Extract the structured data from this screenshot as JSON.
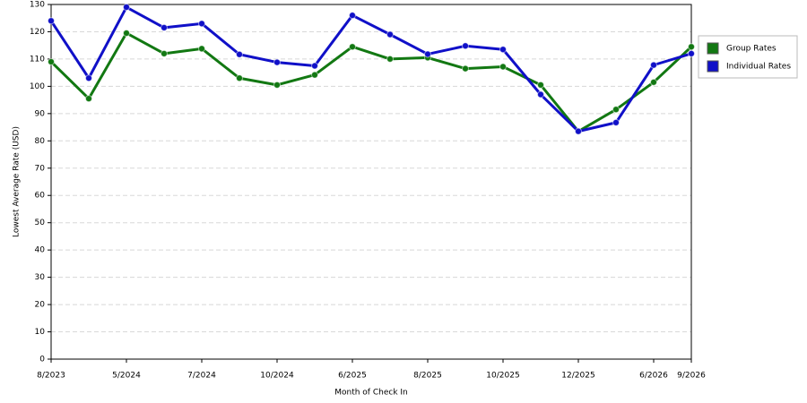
{
  "chart_data": {
    "type": "line",
    "x_label": "Month of Check In",
    "y_label": "Lowest Average Rate (USD)",
    "categories": [
      "8/2023",
      null,
      "5/2024",
      null,
      "7/2024",
      null,
      "10/2024",
      null,
      "6/2025",
      null,
      "8/2025",
      null,
      "10/2025",
      null,
      "12/2025",
      null,
      "6/2026",
      "9/2026"
    ],
    "series": [
      {
        "name": "Group Rates",
        "color": "#127812",
        "values": [
          109,
          95.5,
          119.5,
          112,
          113.8,
          103,
          100.5,
          104.2,
          114.5,
          110,
          110.5,
          106.5,
          107.2,
          100.5,
          83.5,
          91.5,
          101.5,
          114.5
        ]
      },
      {
        "name": "Individual Rates",
        "color": "#1010c8",
        "values": [
          124,
          103,
          129,
          121.5,
          123,
          111.7,
          108.8,
          107.5,
          126,
          119,
          111.8,
          114.8,
          113.5,
          97,
          83.5,
          86.7,
          107.8,
          112
        ]
      }
    ],
    "ylim": [
      0,
      130
    ],
    "yticks": [
      0,
      10,
      20,
      30,
      40,
      50,
      60,
      70,
      80,
      90,
      100,
      110,
      120,
      130
    ],
    "grid": true,
    "legend": "right"
  }
}
